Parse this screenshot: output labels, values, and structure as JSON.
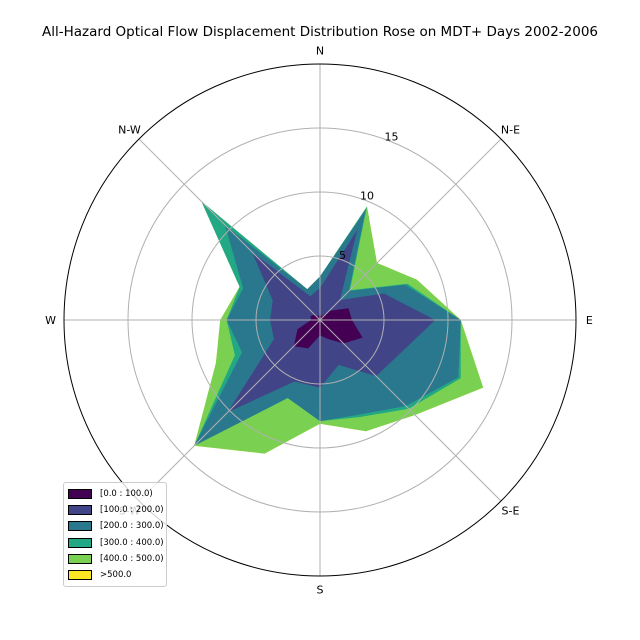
{
  "chart_data": {
    "type": "area",
    "title": "All-Hazard Optical Flow Displacement Distribution Rose on MDT+ Days 2002-2006",
    "directions": [
      "N",
      "N-E",
      "E",
      "S-E",
      "S",
      "S-W",
      "W",
      "N-W"
    ],
    "rticks": [
      5,
      10,
      15
    ],
    "rtick_labels": [
      "5",
      "10",
      "15"
    ],
    "rmax": 20,
    "angles_deg": [
      0,
      22.5,
      45,
      67.5,
      90,
      112.5,
      135,
      157.5,
      180,
      202.5,
      225,
      247.5,
      270,
      292.5,
      315,
      337.5
    ],
    "legend_placement": "lower-left",
    "series": [
      {
        "name": "[0.0 : 100.0)",
        "color": "#440154",
        "values": [
          0.6,
          0.3,
          1.0,
          2.4,
          2.5,
          3.6,
          2.6,
          1.6,
          1.2,
          2.4,
          2.9,
          1.9,
          0.7,
          0.8,
          0.6,
          0.3
        ]
      },
      {
        "name": "[100.0 : 200.0)",
        "color": "#414487",
        "values": [
          2.5,
          7.6,
          2.2,
          5.4,
          9.0,
          6.8,
          6.2,
          3.8,
          5.3,
          5.2,
          10.2,
          3.9,
          3.9,
          4.0,
          7.5,
          2.0
        ]
      },
      {
        "name": "[200.0 : 300.0)",
        "color": "#2a788e",
        "values": [
          3.4,
          9.3,
          3.2,
          7.2,
          11.0,
          11.7,
          9.5,
          8.0,
          7.9,
          6.6,
          13.9,
          6.6,
          7.3,
          6.5,
          10.5,
          2.6
        ]
      },
      {
        "name": "[300.0 : 400.0)",
        "color": "#22a884",
        "values": [
          3.4,
          9.6,
          3.3,
          7.4,
          11.0,
          11.9,
          9.8,
          8.2,
          7.9,
          6.6,
          13.9,
          7.2,
          7.3,
          6.8,
          13.1,
          2.6
        ]
      },
      {
        "name": "[400.0 : 500.0)",
        "color": "#7ad151",
        "values": [
          3.4,
          9.6,
          6.3,
          8.2,
          11.0,
          13.8,
          10.5,
          9.4,
          8.1,
          11.3,
          13.9,
          8.8,
          7.8,
          6.8,
          13.1,
          2.6
        ]
      },
      {
        "name": ">500.0",
        "color": "#fde725",
        "values": [
          3.4,
          9.6,
          6.3,
          8.2,
          11.0,
          13.8,
          10.5,
          9.4,
          8.1,
          11.3,
          13.9,
          8.8,
          7.8,
          6.8,
          13.1,
          2.6
        ]
      }
    ]
  }
}
